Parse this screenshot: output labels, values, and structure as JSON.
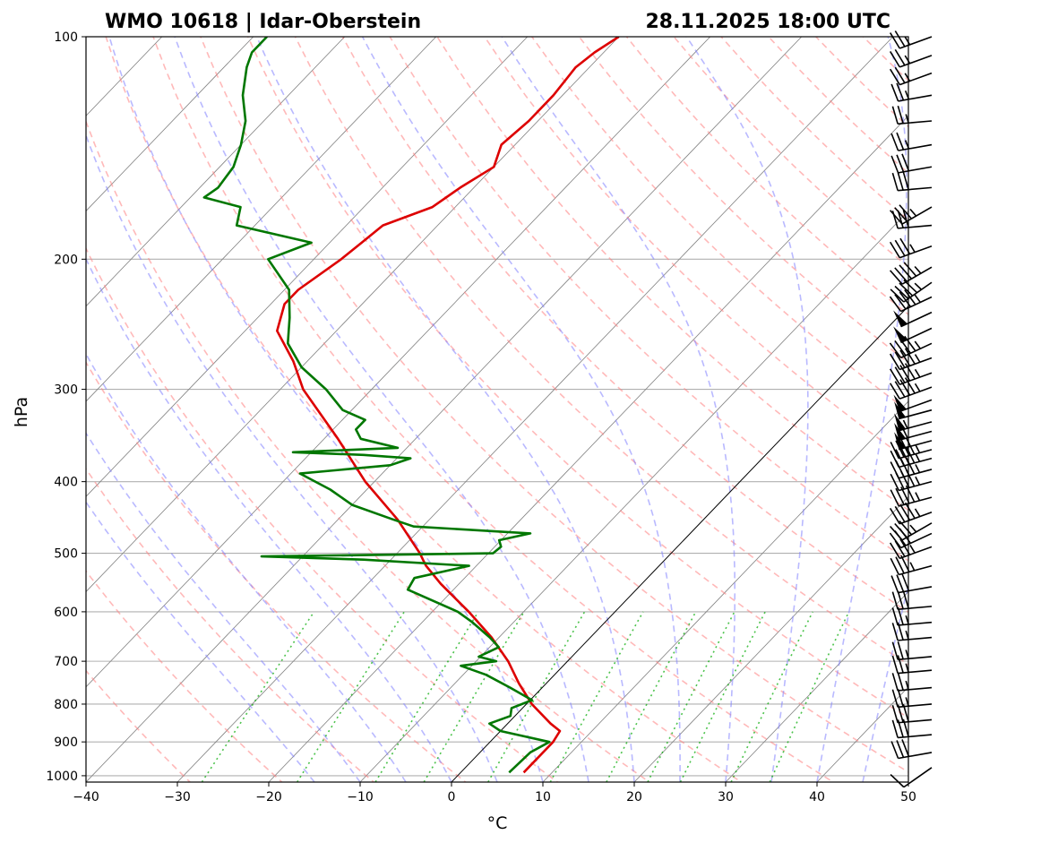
{
  "title_left": "WMO 10618 | Idar-Oberstein",
  "title_right": "28.11.2025 18:00 UTC",
  "chart_data": {
    "type": "line",
    "subtype": "skew-T log-p sounding",
    "xlabel": "°C",
    "ylabel": "hPa",
    "xlim": [
      -40,
      50
    ],
    "ylim": [
      1020,
      100
    ],
    "yscale": "log",
    "x_ticks": [
      "−40",
      "−30",
      "−20",
      "−10",
      "0",
      "10",
      "20",
      "30",
      "40",
      "50"
    ],
    "y_ticks": [
      "1000",
      "900",
      "800",
      "700",
      "600",
      "500",
      "400",
      "300",
      "200",
      "100"
    ],
    "grid": true,
    "colors": {
      "temperature": "#dd0000",
      "dewpoint": "#007700",
      "dry_adiabats": "#ff8080",
      "moist_adiabats": "#8080ff",
      "mixing_ratio": "#00aa00",
      "isotherms": "#808080",
      "zero_isotherm": "#000000"
    },
    "series": [
      {
        "key": "temperature",
        "pressure": [
          990,
          900,
          870,
          850,
          800,
          750,
          700,
          650,
          600,
          550,
          520,
          510,
          500,
          450,
          400,
          350,
          300,
          275,
          250,
          230,
          220,
          200,
          190,
          180,
          170,
          160,
          150,
          140,
          130,
          120,
          110,
          105,
          100
        ],
        "values": [
          6.9,
          6.9,
          6.5,
          4.7,
          0.6,
          -3.0,
          -6.5,
          -10.8,
          -16.0,
          -22.0,
          -25.5,
          -26.5,
          -27.5,
          -33.5,
          -41.0,
          -48.5,
          -57.5,
          -61.5,
          -66.5,
          -68.5,
          -68.5,
          -67.0,
          -66.5,
          -66.0,
          -62.5,
          -61.5,
          -60.0,
          -61.5,
          -61.0,
          -61.0,
          -61.5,
          -61.0,
          -60.0
        ]
      },
      {
        "key": "dewpoint",
        "pressure": [
          990,
          930,
          900,
          880,
          870,
          850,
          830,
          810,
          790,
          760,
          730,
          710,
          700,
          690,
          670,
          650,
          620,
          600,
          560,
          540,
          520,
          510,
          505,
          500,
          490,
          480,
          470,
          460,
          450,
          430,
          410,
          390,
          380,
          372,
          368,
          365,
          360,
          350,
          340,
          330,
          320,
          300,
          280,
          260,
          240,
          220,
          200,
          190,
          180,
          170,
          165,
          160,
          150,
          140,
          130,
          120,
          110,
          105,
          100
        ],
        "values": [
          5.3,
          5.5,
          6.5,
          2.2,
          0.0,
          -2.0,
          -0.5,
          -1.2,
          0.2,
          -3.5,
          -7.5,
          -11.2,
          -7.8,
          -10.2,
          -9.0,
          -11.0,
          -14.5,
          -17.2,
          -25.0,
          -25.5,
          -20.8,
          -33.0,
          -44.5,
          -19.5,
          -19.3,
          -20.2,
          -17.5,
          -31.0,
          -34.0,
          -40.0,
          -44.0,
          -49.0,
          -40.0,
          -38.5,
          -44.0,
          -52.0,
          -41.0,
          -46.0,
          -47.5,
          -47.5,
          -51.0,
          -55.0,
          -60.0,
          -64.0,
          -66.5,
          -69.5,
          -75.0,
          -72.0,
          -82.0,
          -83.5,
          -88.5,
          -88.0,
          -88.5,
          -90.0,
          -92.0,
          -95.0,
          -97.5,
          -98.5,
          -98.5
        ]
      }
    ],
    "wind_barbs": {
      "pressure": [
        975,
        930,
        880,
        840,
        800,
        760,
        720,
        690,
        650,
        620,
        590,
        555,
        520,
        490,
        470,
        455,
        440,
        420,
        400,
        385,
        372,
        362,
        352,
        342,
        332,
        320,
        310,
        298,
        285,
        272,
        260,
        248,
        236,
        225,
        215,
        205,
        192,
        180,
        170,
        160,
        150,
        140,
        130,
        120,
        112,
        106,
        100
      ],
      "direction_deg": [
        235,
        260,
        265,
        265,
        265,
        265,
        265,
        265,
        265,
        265,
        265,
        260,
        255,
        250,
        245,
        240,
        250,
        255,
        255,
        255,
        255,
        255,
        255,
        255,
        255,
        255,
        250,
        250,
        250,
        250,
        245,
        245,
        245,
        245,
        235,
        240,
        250,
        265,
        240,
        265,
        260,
        260,
        265,
        260,
        250,
        250,
        250
      ],
      "speed_kt": [
        10,
        30,
        30,
        30,
        25,
        25,
        25,
        25,
        25,
        25,
        30,
        30,
        35,
        35,
        30,
        35,
        45,
        45,
        45,
        45,
        45,
        45,
        50,
        55,
        55,
        50,
        50,
        45,
        45,
        45,
        45,
        50,
        50,
        45,
        45,
        45,
        35,
        30,
        35,
        30,
        30,
        25,
        25,
        25,
        25,
        25,
        25
      ]
    }
  }
}
